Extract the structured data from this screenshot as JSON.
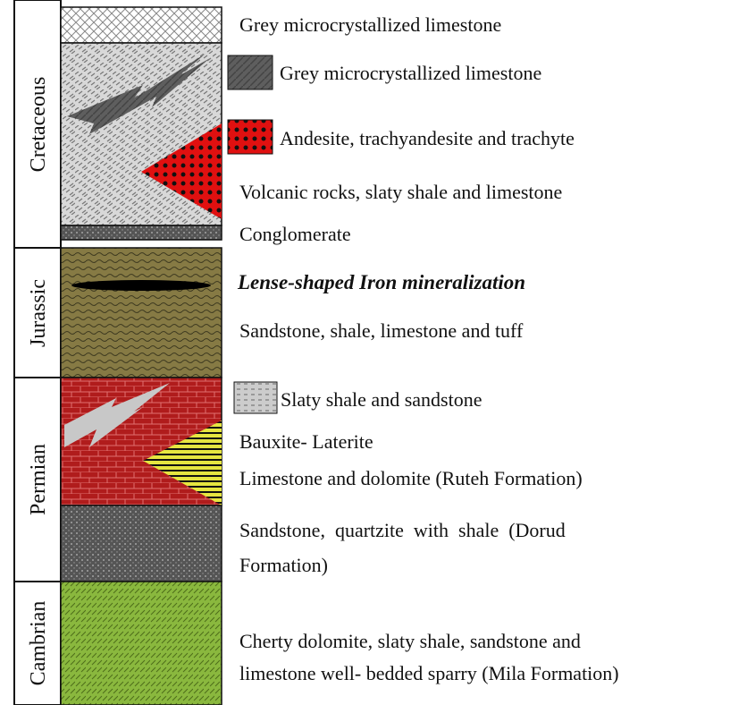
{
  "periods": [
    {
      "name": "Cretaceous"
    },
    {
      "name": "Jurassic"
    },
    {
      "name": "Permian"
    },
    {
      "name": "Cambrian"
    }
  ],
  "units": [
    {
      "lines": [
        "Grey microcrystallized limestone"
      ]
    },
    {
      "lines": [
        "Grey microcrystallized limestone"
      ]
    },
    {
      "lines": [
        "Andesite, trachyandesite and trachyte"
      ]
    },
    {
      "lines": [
        "Volcanic rocks, slaty shale and limestone"
      ]
    },
    {
      "lines": [
        "Conglomerate"
      ]
    },
    {
      "lines": [
        "Lense-shaped Iron mineralization"
      ]
    },
    {
      "lines": [
        "Sandstone,  shale,  limestone and tuff"
      ]
    },
    {
      "lines": [
        "Slaty shale and sandstone"
      ]
    },
    {
      "lines": [
        "Bauxite- Laterite"
      ]
    },
    {
      "lines": [
        "Limestone and dolomite (Ruteh Formation)"
      ]
    },
    {
      "lines": [
        "Sandstone,  quartzite  with  shale  (Dorud",
        "Formation)"
      ]
    },
    {
      "lines": [
        "Cherty dolomite, slaty shale, sandstone and",
        "limestone well- bedded sparry (Mila Formation)"
      ]
    }
  ]
}
